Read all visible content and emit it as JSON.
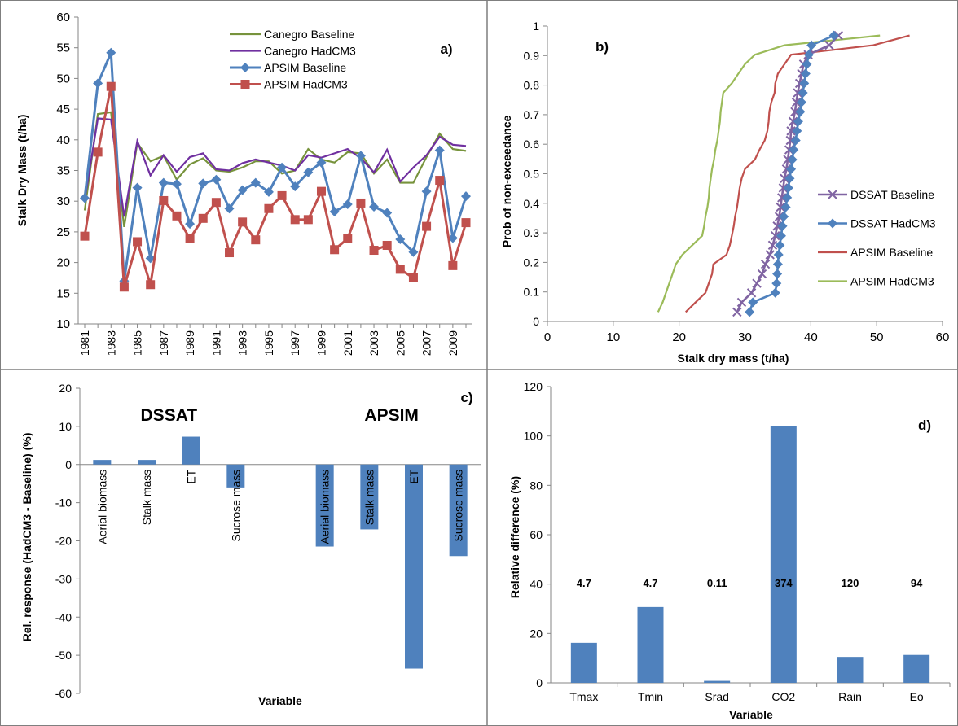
{
  "chart_data": [
    {
      "panel": "a)",
      "type": "line",
      "xlabel": "",
      "ylabel": "Stalk Dry Mass (t/ha)",
      "ylim": [
        10,
        60
      ],
      "yticks": [
        10,
        15,
        20,
        25,
        30,
        35,
        40,
        45,
        50,
        55,
        60
      ],
      "x": [
        1981,
        1982,
        1983,
        1984,
        1985,
        1986,
        1987,
        1988,
        1989,
        1990,
        1991,
        1992,
        1993,
        1994,
        1995,
        1996,
        1997,
        1998,
        1999,
        2000,
        2001,
        2002,
        2003,
        2004,
        2005,
        2006,
        2007,
        2008,
        2009,
        2010
      ],
      "xtick_labels": [
        "1981",
        "1983",
        "1985",
        "1987",
        "1989",
        "1991",
        "1993",
        "1995",
        "1997",
        "1999",
        "2001",
        "2003",
        "2005",
        "2007",
        "2009"
      ],
      "legend_position": "top-right",
      "grid": false,
      "series": [
        {
          "name": "Canegro Baseline",
          "color": "#77933C",
          "marker": "none",
          "values": [
            28.5,
            44.2,
            44.5,
            25.8,
            39.5,
            36.5,
            37.4,
            33.5,
            36.0,
            37.0,
            35.0,
            34.8,
            35.5,
            36.5,
            36.5,
            34.5,
            35.0,
            38.5,
            36.8,
            36.3,
            38.0,
            37.8,
            34.5,
            36.8,
            33.0,
            33.0,
            37.2,
            41.0,
            38.5,
            38.2
          ]
        },
        {
          "name": "Canegro HadCM3",
          "color": "#7030A0",
          "marker": "none",
          "values": [
            30.2,
            43.5,
            43.3,
            27.5,
            39.8,
            34.2,
            37.5,
            34.8,
            37.2,
            37.8,
            35.2,
            35.0,
            36.2,
            36.8,
            36.3,
            35.8,
            35.0,
            37.5,
            37.1,
            37.8,
            38.5,
            37.0,
            34.7,
            38.4,
            33.2,
            35.5,
            37.5,
            40.5,
            39.2,
            39.0
          ]
        },
        {
          "name": "APSIM Baseline",
          "color": "#4F81BD",
          "marker": "diamond",
          "values": [
            30.5,
            49.2,
            54.2,
            17.0,
            32.2,
            20.7,
            33.0,
            32.8,
            26.3,
            32.9,
            33.5,
            28.8,
            31.8,
            33.0,
            31.5,
            35.5,
            32.4,
            34.7,
            36.3,
            28.3,
            29.5,
            37.4,
            29.1,
            28.1,
            23.8,
            21.7,
            31.6,
            38.3,
            24.0,
            30.8
          ]
        },
        {
          "name": "APSIM HadCM3",
          "color": "#C0504D",
          "marker": "square",
          "values": [
            24.3,
            38.0,
            48.7,
            16.0,
            23.4,
            16.4,
            30.1,
            27.6,
            23.9,
            27.2,
            29.8,
            21.6,
            26.6,
            23.7,
            28.8,
            30.9,
            27.0,
            27.0,
            31.6,
            22.1,
            23.9,
            29.7,
            22.0,
            22.8,
            18.9,
            17.5,
            25.9,
            33.4,
            19.5,
            26.5
          ]
        }
      ]
    },
    {
      "panel": "b)",
      "type": "line",
      "xlabel": "Stalk dry mass (t/ha)",
      "ylabel": "Prob of non-exceedance",
      "xlim": [
        0,
        60
      ],
      "ylim": [
        0,
        1
      ],
      "xticks": [
        0,
        10,
        20,
        30,
        40,
        50,
        60
      ],
      "yticks": [
        0,
        0.1,
        0.2,
        0.3,
        0.4,
        0.5,
        0.6,
        0.7,
        0.8,
        0.9,
        1
      ],
      "prob": [
        0.032,
        0.065,
        0.097,
        0.129,
        0.161,
        0.194,
        0.226,
        0.258,
        0.29,
        0.323,
        0.355,
        0.387,
        0.419,
        0.452,
        0.484,
        0.516,
        0.548,
        0.581,
        0.613,
        0.645,
        0.677,
        0.71,
        0.742,
        0.774,
        0.806,
        0.839,
        0.871,
        0.903,
        0.935,
        0.968
      ],
      "legend_position": "right",
      "grid": false,
      "series": [
        {
          "name": "DSSAT Baseline",
          "color": "#8064A2",
          "marker": "x",
          "values": [
            28.8,
            29.5,
            31.0,
            31.8,
            32.6,
            33.1,
            33.8,
            34.2,
            34.6,
            34.9,
            35.2,
            35.4,
            35.6,
            35.8,
            36.0,
            36.3,
            36.5,
            36.7,
            36.9,
            37.0,
            37.3,
            37.6,
            37.8,
            38.0,
            38.3,
            38.6,
            38.9,
            39.6,
            42.8,
            44.2
          ]
        },
        {
          "name": "DSSAT HadCM3",
          "color": "#4F81BD",
          "marker": "diamond",
          "values": [
            30.7,
            31.2,
            34.6,
            34.8,
            34.9,
            35.0,
            35.1,
            35.3,
            35.5,
            35.7,
            35.9,
            36.2,
            36.4,
            36.6,
            36.8,
            37.0,
            37.2,
            37.4,
            37.7,
            37.9,
            38.1,
            38.4,
            38.6,
            38.8,
            39.0,
            39.2,
            39.4,
            39.7,
            40.1,
            43.5
          ]
        },
        {
          "name": "APSIM Baseline",
          "color": "#C0504D",
          "marker": "none",
          "values": [
            21.0,
            22.5,
            24.0,
            24.5,
            25.0,
            25.2,
            27.2,
            27.7,
            28.0,
            28.3,
            28.5,
            28.8,
            29.0,
            29.2,
            29.5,
            30.0,
            31.5,
            32.2,
            33.0,
            33.4,
            33.6,
            33.7,
            34.0,
            34.5,
            34.6,
            35.0,
            36.0,
            37.0,
            49.5,
            55.0
          ]
        },
        {
          "name": "APSIM HadCM3",
          "color": "#9BBB59",
          "marker": "none",
          "values": [
            16.8,
            17.5,
            18.0,
            18.5,
            19.0,
            19.5,
            20.5,
            22.0,
            23.5,
            23.8,
            24.0,
            24.3,
            24.5,
            24.6,
            24.8,
            25.0,
            25.3,
            25.5,
            25.8,
            26.0,
            26.2,
            26.3,
            26.5,
            26.7,
            28.0,
            29.0,
            30.0,
            31.5,
            36.0,
            50.5
          ]
        }
      ]
    },
    {
      "panel": "c)",
      "type": "bar",
      "xlabel": "Variable",
      "ylabel": "Rel. response  (HadCM3 - Baseline)  (%)",
      "ylim": [
        -60,
        20
      ],
      "yticks": [
        -60,
        -50,
        -40,
        -30,
        -20,
        -10,
        0,
        10,
        20
      ],
      "color": "#4F81BD",
      "groups": [
        {
          "title": "DSSAT",
          "categories": [
            "Aerial biomass",
            "Stalk mass",
            "ET",
            "Sucrose mass"
          ],
          "values": [
            1.2,
            1.2,
            7.3,
            -6.0
          ]
        },
        {
          "title": "APSIM",
          "categories": [
            "Aerial biomass",
            "Stalk mass",
            "ET",
            "Sucrose mass"
          ],
          "values": [
            -21.5,
            -17.0,
            -53.5,
            -24.0
          ]
        }
      ]
    },
    {
      "panel": "d)",
      "type": "bar",
      "xlabel": "Variable",
      "ylabel": "Relative difference (%)",
      "ylim": [
        0,
        120
      ],
      "yticks": [
        0,
        20,
        40,
        60,
        80,
        100,
        120
      ],
      "color": "#4F81BD",
      "categories": [
        "Tmax",
        "Tmin",
        "Srad",
        "CO2",
        "Rain",
        "Eo"
      ],
      "values": [
        16.2,
        30.7,
        0.8,
        104.0,
        10.5,
        11.3
      ],
      "annotations": [
        "4.7",
        "4.7",
        "0.11",
        "374",
        "120",
        "94"
      ]
    }
  ]
}
